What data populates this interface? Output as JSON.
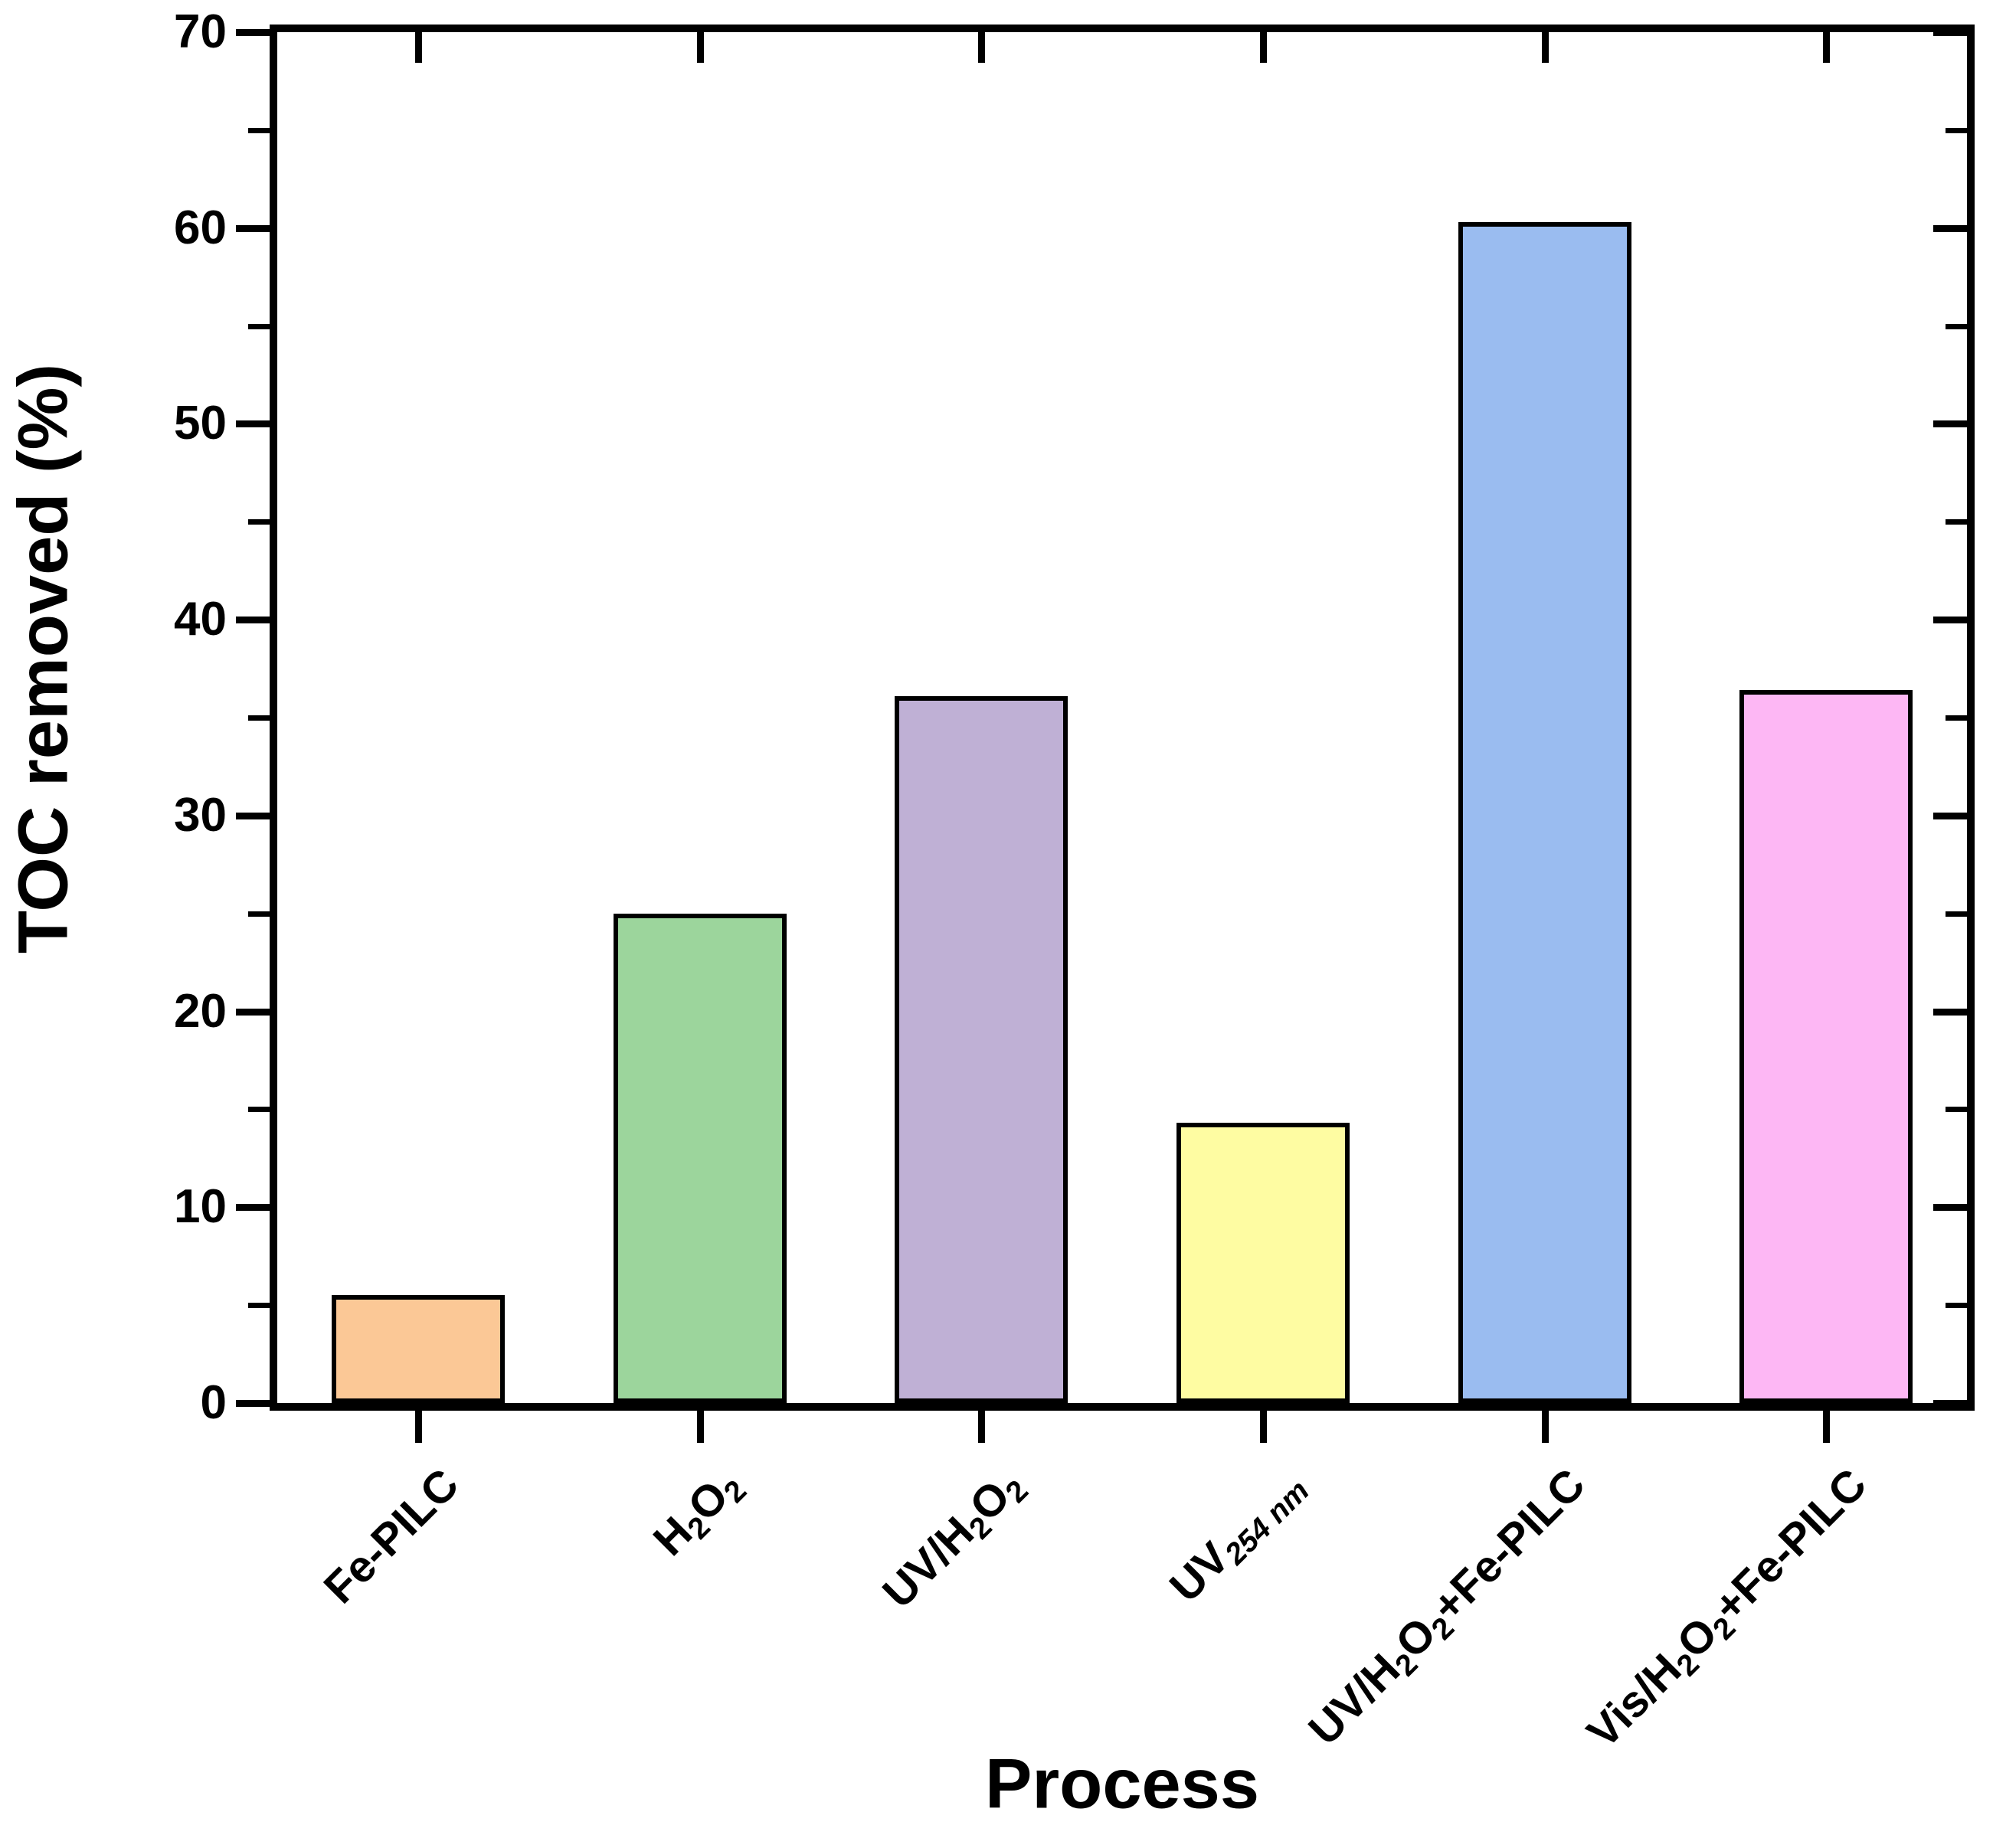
{
  "chart_data": {
    "type": "bar",
    "title": "",
    "xlabel": "Process",
    "ylabel": "TOC removed (%)",
    "ylim": [
      0,
      70
    ],
    "y_major_ticks": [
      0,
      10,
      20,
      30,
      40,
      50,
      60,
      70
    ],
    "y_minor_step": 5,
    "grid": "off",
    "legend": "none",
    "categories": [
      "Fe-PILC",
      "H2O2",
      "UV/H2O2",
      "UV254 nm",
      "UV/H2O2+Fe-PILC",
      "Vis/H2O2+Fe-PILC"
    ],
    "categories_rich": [
      [
        {
          "t": "Fe-PILC"
        }
      ],
      [
        {
          "t": "H"
        },
        {
          "t": "2",
          "sub": true
        },
        {
          "t": "O"
        },
        {
          "t": "2",
          "sub": true
        }
      ],
      [
        {
          "t": "UV/H"
        },
        {
          "t": "2",
          "sub": true
        },
        {
          "t": "O"
        },
        {
          "t": "2",
          "sub": true
        }
      ],
      [
        {
          "t": "UV"
        },
        {
          "t": "254 nm",
          "sub": true,
          "italic": true
        }
      ],
      [
        {
          "t": "UV/H"
        },
        {
          "t": "2",
          "sub": true
        },
        {
          "t": "O"
        },
        {
          "t": "2",
          "sub": true
        },
        {
          "t": "+Fe-PILC"
        }
      ],
      [
        {
          "t": "Vis/H"
        },
        {
          "t": "2",
          "sub": true
        },
        {
          "t": "O"
        },
        {
          "t": "2",
          "sub": true
        },
        {
          "t": "+Fe-PILC"
        }
      ]
    ],
    "values": [
      5.5,
      25.0,
      36.1,
      14.3,
      60.3,
      36.4
    ],
    "bar_colors": [
      "#FBC896",
      "#9CD59C",
      "#BFB0D5",
      "#FEFCA2",
      "#9ABCF0",
      "#FDB7F4"
    ],
    "bar_edge_color": "#000000",
    "axis_color": "#000000",
    "background_color": "#ffffff"
  }
}
